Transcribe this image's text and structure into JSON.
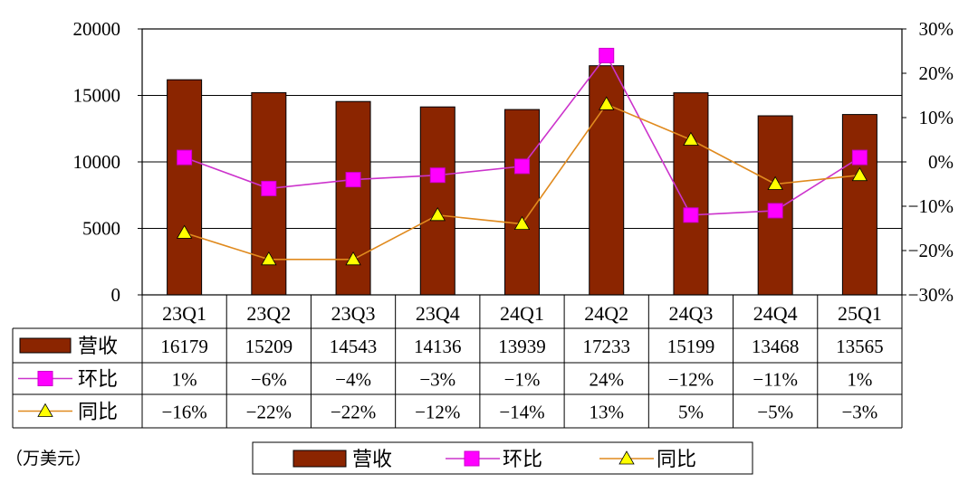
{
  "chart_data": {
    "type": "bar",
    "categories": [
      "23Q1",
      "23Q2",
      "23Q3",
      "23Q4",
      "24Q1",
      "24Q2",
      "24Q3",
      "24Q4",
      "25Q1"
    ],
    "unit_note": "（万美元）",
    "left_axis": {
      "ylim": [
        0,
        20000
      ],
      "ticks": [
        "0",
        "5000",
        "10000",
        "15000",
        "20000"
      ]
    },
    "right_axis": {
      "ylim": [
        -30,
        30
      ],
      "ticks": [
        "-30%",
        "-20%",
        "-10%",
        "0%",
        "10%",
        "20%",
        "30%"
      ]
    },
    "series": [
      {
        "name": "营收",
        "type": "bar",
        "axis": "left",
        "color": "#8B2500",
        "values": [
          16179,
          15209,
          14543,
          14136,
          13939,
          17233,
          15199,
          13468,
          13565
        ],
        "labels": [
          "16179",
          "15209",
          "14543",
          "14136",
          "13939",
          "17233",
          "15199",
          "13468",
          "13565"
        ]
      },
      {
        "name": "环比",
        "type": "line",
        "axis": "right",
        "color": "#CC33CC",
        "marker": "square",
        "marker_color": "#FF00FF",
        "values": [
          1,
          -6,
          -4,
          -3,
          -1,
          24,
          -12,
          -11,
          1
        ],
        "labels": [
          "1%",
          "-6%",
          "-4%",
          "-3%",
          "-1%",
          "24%",
          "-12%",
          "-11%",
          "1%"
        ]
      },
      {
        "name": "同比",
        "type": "line",
        "axis": "right",
        "color": "#E08A1E",
        "marker": "triangle",
        "marker_color": "#FFFF00",
        "values": [
          -16,
          -22,
          -22,
          -12,
          -14,
          13,
          5,
          -5,
          -3
        ],
        "labels": [
          "-16%",
          "-22%",
          "-22%",
          "-12%",
          "-14%",
          "13%",
          "5%",
          "-5%",
          "-3%"
        ]
      }
    ],
    "grid": true,
    "legend_position": "bottom"
  }
}
